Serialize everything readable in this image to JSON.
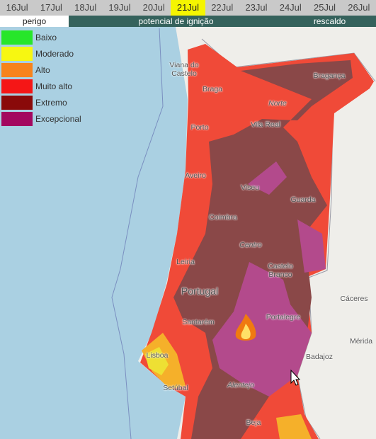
{
  "dates": [
    "16Jul",
    "17Jul",
    "18Jul",
    "19Jul",
    "20Jul",
    "21Jul",
    "22Jul",
    "23Jul",
    "24Jul",
    "25Jul",
    "26Jul"
  ],
  "selected_date_index": 5,
  "tabs": [
    "perigo",
    "potencial de ignição",
    "rescaldo"
  ],
  "legend": [
    {
      "label": "Baixo",
      "color": "#27e62a"
    },
    {
      "label": "Moderado",
      "color": "#f7f711"
    },
    {
      "label": "Alto",
      "color": "#f7831c"
    },
    {
      "label": "Muito alto",
      "color": "#f51616"
    },
    {
      "label": "Extremo",
      "color": "#8a0a0a"
    },
    {
      "label": "Excepcional",
      "color": "#a3075f"
    }
  ],
  "places": [
    "Viana do Castelo",
    "Braga",
    "Bragança",
    "Norte",
    "Porto",
    "Vila Real",
    "Aveiro",
    "Viseu",
    "Guarda",
    "Coimbra",
    "Centro",
    "Leiria",
    "Castelo Branco",
    "Portugal",
    "Santarém",
    "Portalegre",
    "Cáceres",
    "Lisboa",
    "Setúbal",
    "Badajoz",
    "Mérida",
    "Alentejo",
    "Beja"
  ]
}
